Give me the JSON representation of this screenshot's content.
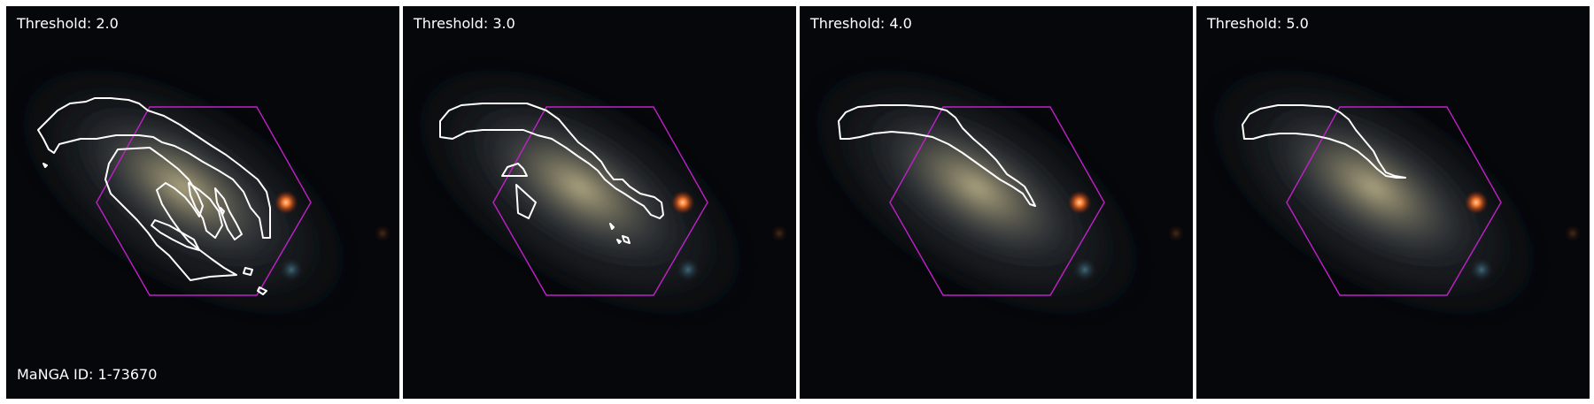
{
  "panels": [
    {
      "threshold_label": "Threshold: 2.0"
    },
    {
      "threshold_label": "Threshold: 3.0"
    },
    {
      "threshold_label": "Threshold: 4.0"
    },
    {
      "threshold_label": "Threshold: 5.0"
    }
  ],
  "galaxy_id_label": "MaNGA ID: 1-73670",
  "colors": {
    "hexagon": "#c020c8",
    "contour": "#ffffff",
    "background": "#06070a",
    "star": "#ff7a2a"
  }
}
